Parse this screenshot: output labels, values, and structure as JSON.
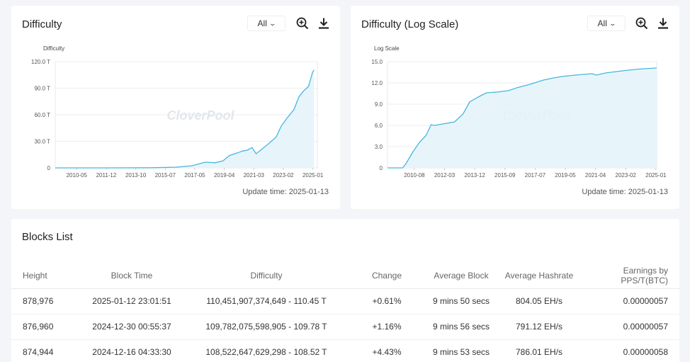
{
  "charts": [
    {
      "title": "Difficulty",
      "range_label": "All",
      "zoom_icon": "zoom-in-icon",
      "download_icon": "download-icon",
      "update_time": "Update time: 2025-01-13",
      "watermark": "CloverPool",
      "chart_data": {
        "type": "area",
        "ylabel": "Difficulty",
        "yticks": [
          "0",
          "30.0 T",
          "60.0 T",
          "90.0 T",
          "120.0 T"
        ],
        "ylim": [
          0,
          120
        ],
        "xticks": [
          "2010-05",
          "2011-12",
          "2013-10",
          "2015-07",
          "2017-05",
          "2019-04",
          "2021-03",
          "2023-02",
          "2025-01"
        ],
        "xlim": [
          2009.0,
          2025.25
        ],
        "x": [
          2009.0,
          2012.0,
          2015.0,
          2016.5,
          2017.5,
          2018.3,
          2018.9,
          2019.4,
          2019.8,
          2020.3,
          2020.6,
          2020.9,
          2021.2,
          2021.45,
          2021.8,
          2022.2,
          2022.7,
          2023.0,
          2023.4,
          2023.8,
          2024.1,
          2024.4,
          2024.7,
          2024.95,
          2025.04
        ],
        "y": [
          0,
          0,
          0.2,
          0.8,
          2.5,
          6.5,
          5.8,
          8,
          14,
          17,
          19,
          20,
          23,
          16,
          21,
          27,
          35,
          47,
          57,
          66,
          80,
          87,
          92,
          108,
          110.5
        ],
        "grid": true,
        "color": "#48b6dd"
      }
    },
    {
      "title": "Difficulty (Log Scale)",
      "range_label": "All",
      "zoom_icon": "zoom-in-icon",
      "download_icon": "download-icon",
      "update_time": "Update time: 2025-01-13",
      "watermark": "CloverPool",
      "chart_data": {
        "type": "area",
        "ylabel": "Log Scale",
        "yticks": [
          "0",
          "3.0",
          "6.0",
          "9.0",
          "12.0",
          "15.0"
        ],
        "ylim": [
          0,
          15
        ],
        "xticks": [
          "2010-08",
          "2012-03",
          "2013-12",
          "2015-09",
          "2017-07",
          "2019-05",
          "2021-04",
          "2023-02",
          "2025-01"
        ],
        "xlim": [
          2009.0,
          2025.05
        ],
        "x": [
          2009.0,
          2009.9,
          2010.1,
          2010.5,
          2010.9,
          2011.3,
          2011.6,
          2011.8,
          2012.3,
          2013.0,
          2013.5,
          2013.9,
          2014.4,
          2014.9,
          2015.5,
          2016.2,
          2016.7,
          2017.5,
          2018.3,
          2018.9,
          2019.4,
          2020.2,
          2021.2,
          2021.45,
          2022.0,
          2023.0,
          2024.0,
          2025.04
        ],
        "y": [
          0,
          0,
          0.6,
          2.2,
          3.6,
          4.6,
          6.1,
          6.0,
          6.2,
          6.5,
          7.6,
          9.3,
          10.0,
          10.6,
          10.7,
          10.9,
          11.3,
          11.8,
          12.4,
          12.7,
          12.9,
          13.1,
          13.3,
          13.1,
          13.4,
          13.7,
          13.95,
          14.1
        ],
        "grid": true,
        "color": "#48b6dd"
      }
    }
  ],
  "blocks": {
    "title": "Blocks List",
    "columns": [
      "Height",
      "Block Time",
      "Difficulty",
      "Change",
      "Average Block",
      "Average Hashrate",
      "Earnings by PPS/T(BTC)"
    ],
    "rows": [
      {
        "height": "878,976",
        "time": "2025-01-12 23:01:51",
        "difficulty": "110,451,907,374,649 - 110.45 T",
        "change": "+0.61%",
        "avg_block": "9 mins 50 secs",
        "hashrate": "804.05 EH/s",
        "earnings": "0.00000057"
      },
      {
        "height": "876,960",
        "time": "2024-12-30 00:55:37",
        "difficulty": "109,782,075,598,905 - 109.78 T",
        "change": "+1.16%",
        "avg_block": "9 mins 56 secs",
        "hashrate": "791.12 EH/s",
        "earnings": "0.00000057"
      },
      {
        "height": "874,944",
        "time": "2024-12-16 04:33:30",
        "difficulty": "108,522,647,629,298 - 108.52 T",
        "change": "+4.43%",
        "avg_block": "9 mins 53 secs",
        "hashrate": "786.01 EH/s",
        "earnings": "0.00000058"
      }
    ]
  }
}
